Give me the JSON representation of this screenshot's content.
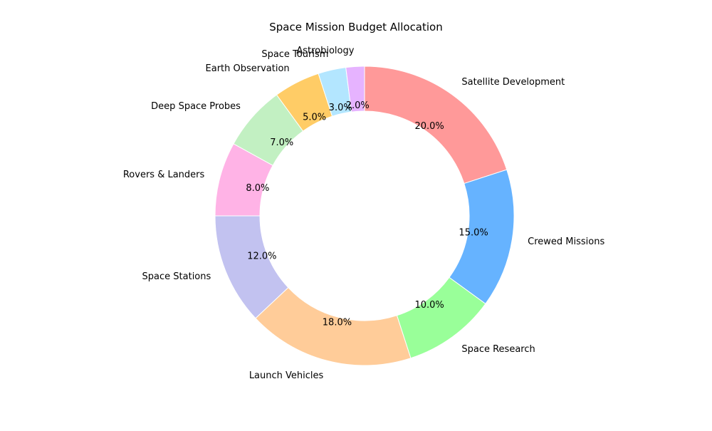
{
  "chart_data": {
    "type": "pie",
    "style": "donut",
    "title": "Space Mission Budget Allocation",
    "start_angle_deg": 90,
    "direction": "clockwise",
    "slices": [
      {
        "label": "Satellite Development",
        "value": 20.0,
        "pct_label": "20.0%",
        "color": "#ff9999"
      },
      {
        "label": "Crewed Missions",
        "value": 15.0,
        "pct_label": "15.0%",
        "color": "#66b3ff"
      },
      {
        "label": "Space Research",
        "value": 10.0,
        "pct_label": "10.0%",
        "color": "#99ff99"
      },
      {
        "label": "Launch Vehicles",
        "value": 18.0,
        "pct_label": "18.0%",
        "color": "#ffcc99"
      },
      {
        "label": "Space Stations",
        "value": 12.0,
        "pct_label": "12.0%",
        "color": "#c2c2f0"
      },
      {
        "label": "Rovers & Landers",
        "value": 8.0,
        "pct_label": "8.0%",
        "color": "#ffb3e6"
      },
      {
        "label": "Deep Space Probes",
        "value": 7.0,
        "pct_label": "7.0%",
        "color": "#c2f0c2"
      },
      {
        "label": "Earth Observation",
        "value": 5.0,
        "pct_label": "5.0%",
        "color": "#ffcc66"
      },
      {
        "label": "Space Tourism",
        "value": 3.0,
        "pct_label": "3.0%",
        "color": "#b3e6ff"
      },
      {
        "label": "Astrobiology",
        "value": 2.0,
        "pct_label": "2.0%",
        "color": "#e6b3ff"
      }
    ]
  }
}
